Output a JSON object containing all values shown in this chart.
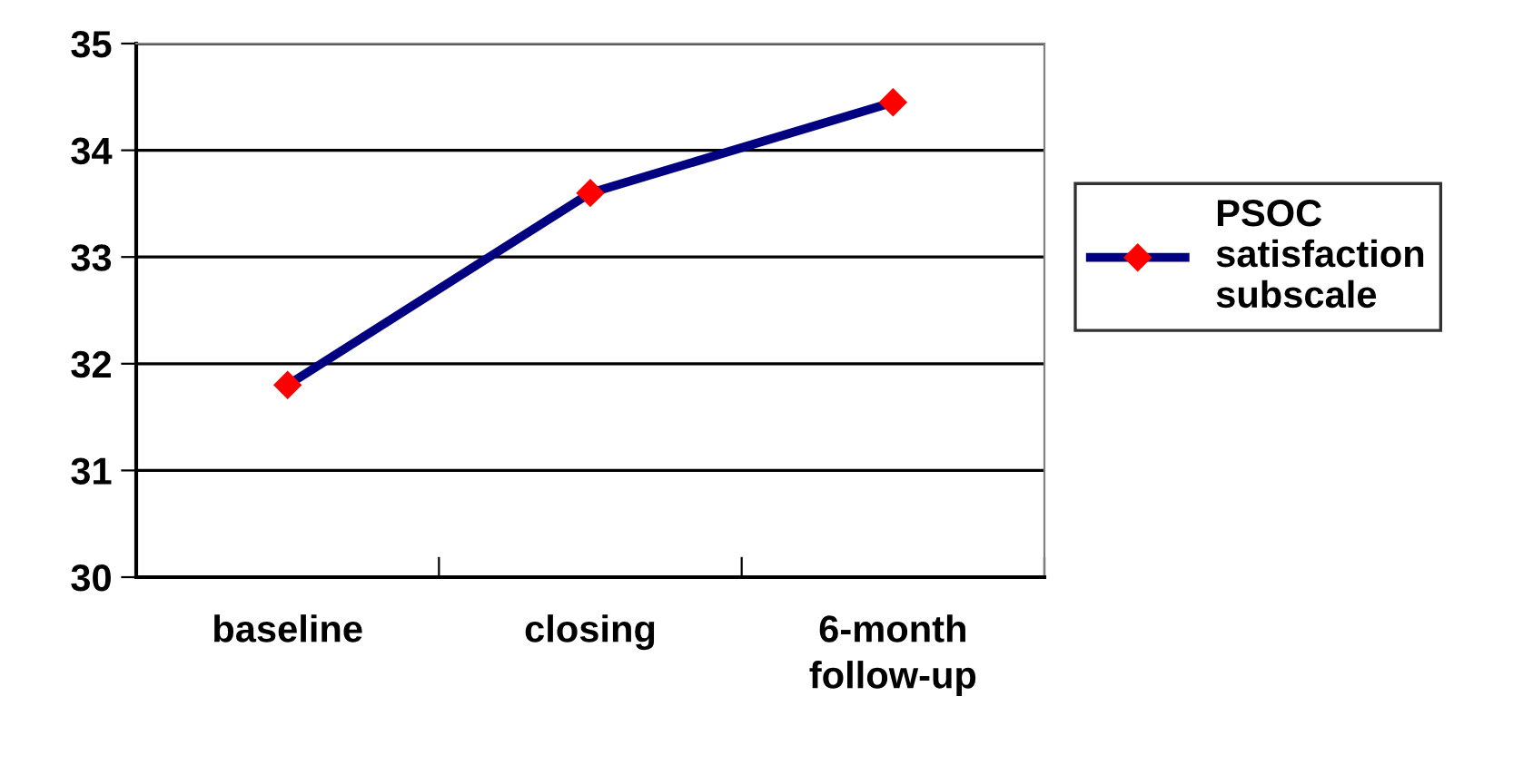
{
  "chart_data": {
    "type": "line",
    "categories": [
      "baseline",
      "closing",
      "6-month\nfollow-up"
    ],
    "series": [
      {
        "name": "PSOC\nsatisfaction\nsubscale",
        "color": "#000080",
        "values": [
          31.8,
          33.6,
          34.45
        ]
      }
    ],
    "ylim": [
      30,
      35
    ],
    "yticks": [
      30,
      31,
      32,
      33,
      34,
      35
    ],
    "grid": "y",
    "legend": "right",
    "marker": "diamond",
    "line_style": "solid"
  }
}
